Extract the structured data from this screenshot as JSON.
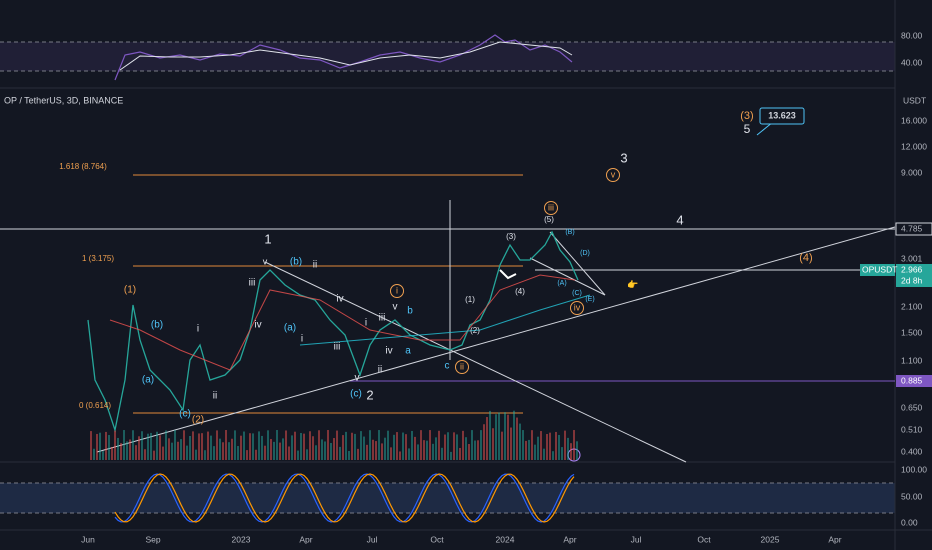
{
  "header": {
    "symbol": "OP / TetherUS, 3D, BINANCE",
    "currency": "USDT"
  },
  "rsi_axis": [
    "80.00",
    "40.00"
  ],
  "price_axis": [
    "16.000",
    "12.000",
    "9.000",
    "4.785",
    "3.001",
    "2.966",
    "2d 8h",
    "2.100",
    "1.500",
    "1.100",
    "0.885",
    "0.650",
    "0.510",
    "0.400"
  ],
  "ticker_tag": "OPUSDT",
  "stoch_axis": [
    "100.00",
    "50.00",
    "0.00"
  ],
  "time_axis": [
    "Jun",
    "Sep",
    "2023",
    "Apr",
    "Jul",
    "Oct",
    "2024",
    "Apr",
    "Jul",
    "Oct",
    "2025",
    "Apr"
  ],
  "target_box": "13.623",
  "annotations": [
    {
      "text": "1.618 (8.764)"
    },
    {
      "text": "1 (3.175)"
    },
    {
      "text": "0 (0.614)"
    },
    {
      "text": "(1)"
    },
    {
      "text": "(b)"
    },
    {
      "text": "(a)"
    },
    {
      "text": "i"
    },
    {
      "text": "ii"
    },
    {
      "text": "(c)"
    },
    {
      "text": "(2)"
    },
    {
      "text": "1"
    },
    {
      "text": "v"
    },
    {
      "text": "(b)"
    },
    {
      "text": "ii"
    },
    {
      "text": "iii"
    },
    {
      "text": "iv"
    },
    {
      "text": "(a)"
    },
    {
      "text": "i"
    },
    {
      "text": "iv"
    },
    {
      "text": "iii"
    },
    {
      "text": "v"
    },
    {
      "text": "(c)"
    },
    {
      "text": "2"
    },
    {
      "text": "i"
    },
    {
      "text": "iii"
    },
    {
      "text": "iv"
    },
    {
      "text": "ii"
    },
    {
      "text": "v"
    },
    {
      "text": "b"
    },
    {
      "text": "a"
    },
    {
      "text": "c"
    },
    {
      "text": "i"
    },
    {
      "text": "ii"
    },
    {
      "text": "(1)"
    },
    {
      "text": "(2)"
    },
    {
      "text": "(3)"
    },
    {
      "text": "(4)"
    },
    {
      "text": "(5)"
    },
    {
      "text": "iii"
    },
    {
      "text": "(B)"
    },
    {
      "text": "(D)"
    },
    {
      "text": "(A)"
    },
    {
      "text": "(C)"
    },
    {
      "text": "(E)"
    },
    {
      "text": "iv"
    },
    {
      "text": "3"
    },
    {
      "text": "v"
    },
    {
      "text": "4"
    },
    {
      "text": "(4)"
    },
    {
      "text": "(3)"
    },
    {
      "text": "5"
    }
  ]
}
